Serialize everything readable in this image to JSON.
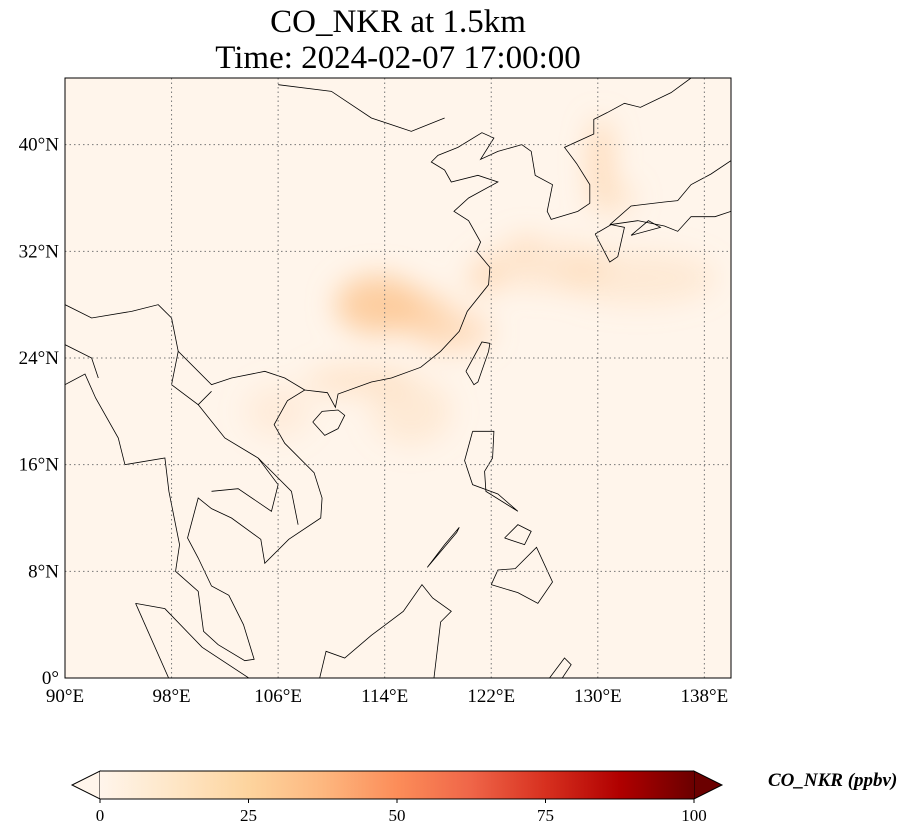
{
  "title": {
    "line1": "CO_NKR at 1.5km",
    "line2": "Time: 2024-02-07 17:00:00"
  },
  "map": {
    "lon_range": [
      90,
      140
    ],
    "lat_range": [
      0,
      45
    ],
    "x_ticks": [
      {
        "value": 90,
        "label": "90°E"
      },
      {
        "value": 98,
        "label": "98°E"
      },
      {
        "value": 106,
        "label": "106°E"
      },
      {
        "value": 114,
        "label": "114°E"
      },
      {
        "value": 122,
        "label": "122°E"
      },
      {
        "value": 130,
        "label": "130°E"
      },
      {
        "value": 138,
        "label": "138°E"
      }
    ],
    "y_ticks": [
      {
        "value": 0,
        "label": "0°"
      },
      {
        "value": 8,
        "label": "8°N"
      },
      {
        "value": 16,
        "label": "16°N"
      },
      {
        "value": 24,
        "label": "24°N"
      },
      {
        "value": 32,
        "label": "32°N"
      },
      {
        "value": 40,
        "label": "40°N"
      }
    ],
    "background_color": "#fff5eb",
    "plume_color": "#fdc895"
  },
  "colorbar": {
    "label": "CO_NKR (ppbv)",
    "range": [
      0,
      100
    ],
    "ticks": [
      {
        "value": 0,
        "label": "0"
      },
      {
        "value": 25,
        "label": "25"
      },
      {
        "value": 50,
        "label": "50"
      },
      {
        "value": 75,
        "label": "75"
      },
      {
        "value": 100,
        "label": "100"
      }
    ],
    "colors": [
      "#fff5eb",
      "#fee6c6",
      "#fdd49e",
      "#fdb77f",
      "#fc8d59",
      "#ef6548",
      "#d7301f",
      "#b00000",
      "#6b0000"
    ],
    "extend": "both"
  }
}
